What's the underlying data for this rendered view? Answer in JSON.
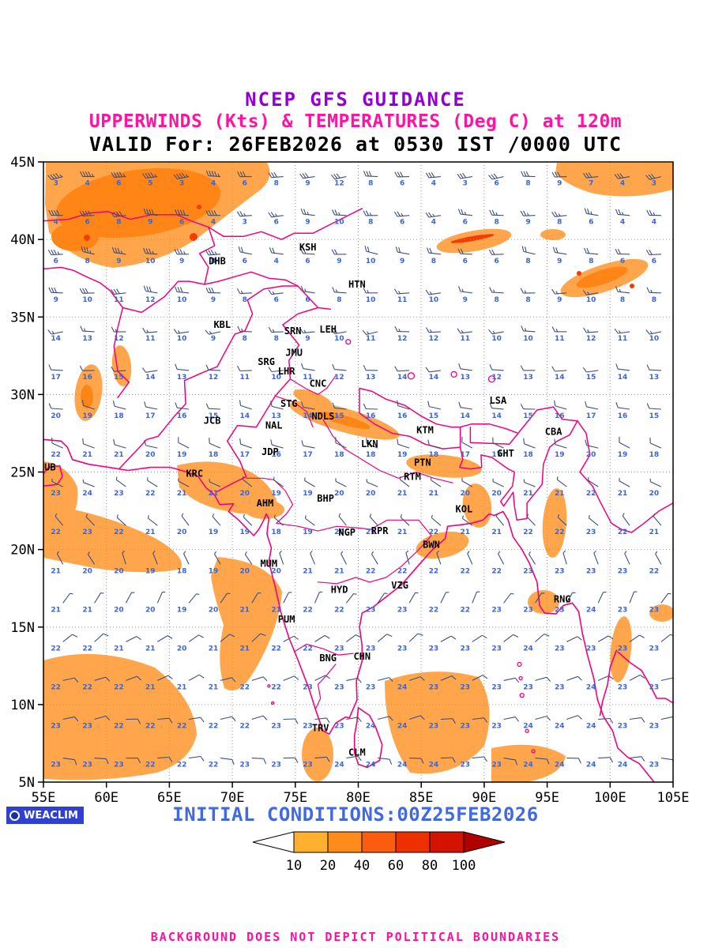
{
  "header": {
    "line1": "NCEP GFS GUIDANCE",
    "line2": "UPPERWINDS (Kts) & TEMPERATURES (Deg C) at 120m",
    "line3": "VALID For: 26FEB2026 at 0530 IST /0000 UTC"
  },
  "footer": {
    "logo_text": "WEACLIM",
    "initial_conditions": "INITIAL CONDITIONS:00Z25FEB2026",
    "disclaimer": "BACKGROUND DOES NOT DEPICT POLITICAL BOUNDARIES"
  },
  "colors": {
    "boundary": "#f2007e",
    "shade_light": "#ffa64d",
    "shade_mid": "#ff8517",
    "shade_high": "#f43b00",
    "barb": "#3d4f7c",
    "temp_text": "#3a64d8",
    "grid": "#9a9a9a",
    "frame": "#000000",
    "title1": "#9400d3",
    "title2": "#ff14a0",
    "initial": "#4169e1",
    "disclaimer": "#ff0f9f",
    "logo_bg": "#2f41d0"
  },
  "axes": {
    "lat": [
      {
        "label": "45N",
        "value": 45
      },
      {
        "label": "40N",
        "value": 40
      },
      {
        "label": "35N",
        "value": 35
      },
      {
        "label": "30N",
        "value": 30
      },
      {
        "label": "25N",
        "value": 25
      },
      {
        "label": "20N",
        "value": 20
      },
      {
        "label": "15N",
        "value": 15
      },
      {
        "label": "10N",
        "value": 10
      },
      {
        "label": "5N",
        "value": 5
      }
    ],
    "lon": [
      {
        "label": "55E",
        "value": 55
      },
      {
        "label": "60E",
        "value": 60
      },
      {
        "label": "65E",
        "value": 65
      },
      {
        "label": "70E",
        "value": 70
      },
      {
        "label": "75E",
        "value": 75
      },
      {
        "label": "80E",
        "value": 80
      },
      {
        "label": "85E",
        "value": 85
      },
      {
        "label": "90E",
        "value": 90
      },
      {
        "label": "95E",
        "value": 95
      },
      {
        "label": "100E",
        "value": 100
      },
      {
        "label": "105E",
        "value": 105
      }
    ]
  },
  "colorbar": {
    "labels": [
      "10",
      "20",
      "40",
      "60",
      "80",
      "100"
    ],
    "colors": [
      "#ffb02e",
      "#ff8c1a",
      "#fb5c10",
      "#ee2f00",
      "#d41200"
    ],
    "arrow_color": "#b00000"
  },
  "stations": [
    {
      "id": "DHB",
      "lon": 68.8,
      "lat": 38.6
    },
    {
      "id": "KSH",
      "lon": 76.0,
      "lat": 39.5
    },
    {
      "id": "HTN",
      "lon": 79.9,
      "lat": 37.1
    },
    {
      "id": "KBL",
      "lon": 69.2,
      "lat": 34.5
    },
    {
      "id": "SRN",
      "lon": 74.8,
      "lat": 34.1
    },
    {
      "id": "LEH",
      "lon": 77.6,
      "lat": 34.2
    },
    {
      "id": "JMU",
      "lon": 74.9,
      "lat": 32.7
    },
    {
      "id": "SRG",
      "lon": 72.7,
      "lat": 32.1
    },
    {
      "id": "LHR",
      "lon": 74.3,
      "lat": 31.5
    },
    {
      "id": "CNC",
      "lon": 76.8,
      "lat": 30.7
    },
    {
      "id": "STG",
      "lon": 74.5,
      "lat": 29.4
    },
    {
      "id": "NDLS",
      "lon": 77.2,
      "lat": 28.6
    },
    {
      "id": "JCB",
      "lon": 68.4,
      "lat": 28.3
    },
    {
      "id": "NAL",
      "lon": 73.3,
      "lat": 28.0
    },
    {
      "id": "LSA",
      "lon": 91.1,
      "lat": 29.6
    },
    {
      "id": "KTM",
      "lon": 85.3,
      "lat": 27.7
    },
    {
      "id": "CBA",
      "lon": 95.5,
      "lat": 27.6
    },
    {
      "id": "GHT",
      "lon": 91.7,
      "lat": 26.2
    },
    {
      "id": "PTN",
      "lon": 85.1,
      "lat": 25.6
    },
    {
      "id": "JDP",
      "lon": 73.0,
      "lat": 26.3
    },
    {
      "id": "LKN",
      "lon": 80.9,
      "lat": 26.8
    },
    {
      "id": "DUB",
      "lon": 55.3,
      "lat": 25.3
    },
    {
      "id": "KRC",
      "lon": 67.0,
      "lat": 24.9
    },
    {
      "id": "RTM",
      "lon": 84.3,
      "lat": 24.7
    },
    {
      "id": "AHM",
      "lon": 72.6,
      "lat": 23.0
    },
    {
      "id": "BHP",
      "lon": 77.4,
      "lat": 23.3
    },
    {
      "id": "KOL",
      "lon": 88.4,
      "lat": 22.6
    },
    {
      "id": "NGP",
      "lon": 79.1,
      "lat": 21.1
    },
    {
      "id": "RPR",
      "lon": 81.7,
      "lat": 21.2
    },
    {
      "id": "BWN",
      "lon": 85.8,
      "lat": 20.3
    },
    {
      "id": "MUM",
      "lon": 72.9,
      "lat": 19.1
    },
    {
      "id": "HYD",
      "lon": 78.5,
      "lat": 17.4
    },
    {
      "id": "VZG",
      "lon": 83.3,
      "lat": 17.7
    },
    {
      "id": "RNG",
      "lon": 96.2,
      "lat": 16.8
    },
    {
      "id": "PUM",
      "lon": 74.3,
      "lat": 15.5
    },
    {
      "id": "CHN",
      "lon": 80.3,
      "lat": 13.1
    },
    {
      "id": "BNG",
      "lon": 77.6,
      "lat": 13.0
    },
    {
      "id": "TRV",
      "lon": 77.0,
      "lat": 8.5
    },
    {
      "id": "CLM",
      "lon": 79.9,
      "lat": 6.9
    }
  ],
  "chart_data": {
    "type": "heatmap",
    "subtype": "weather-map-wind-barbs",
    "title": "NCEP GFS GUIDANCE — UPPERWINDS (Kts) & TEMPERATURES (Deg C) at 120m",
    "valid": "26FEB2026 at 0530 IST /0000 UTC",
    "initial": "00Z25FEB2026",
    "lon_range": [
      55,
      105
    ],
    "lat_range": [
      5,
      45
    ],
    "shading_variable": "wind speed (Kts)",
    "shading_levels": [
      10,
      20,
      40,
      60,
      80,
      100
    ],
    "temperature_units": "Deg C",
    "grid": {
      "lon_start": 56.3,
      "lon_step": 2.5,
      "lat_start": 44.0,
      "lat_step": -2.5,
      "cols": 20,
      "rows": 16
    },
    "temps": [
      [
        3,
        4,
        6,
        5,
        3,
        4,
        6,
        8,
        9,
        12,
        8,
        6,
        4,
        3,
        6,
        8,
        9,
        7,
        4,
        3
      ],
      [
        4,
        6,
        8,
        9,
        6,
        4,
        3,
        6,
        9,
        10,
        8,
        6,
        4,
        6,
        8,
        9,
        8,
        6,
        4,
        4
      ],
      [
        6,
        8,
        9,
        10,
        9,
        8,
        6,
        4,
        6,
        9,
        10,
        9,
        8,
        6,
        6,
        8,
        9,
        8,
        6,
        6
      ],
      [
        9,
        10,
        11,
        12,
        10,
        9,
        8,
        6,
        6,
        8,
        10,
        11,
        10,
        9,
        8,
        8,
        9,
        10,
        8,
        8
      ],
      [
        14,
        13,
        12,
        11,
        10,
        9,
        8,
        8,
        9,
        10,
        11,
        12,
        12,
        11,
        10,
        10,
        11,
        12,
        11,
        10
      ],
      [
        17,
        16,
        15,
        14,
        13,
        12,
        11,
        10,
        11,
        12,
        13,
        14,
        14,
        13,
        12,
        13,
        14,
        15,
        14,
        13
      ],
      [
        20,
        19,
        18,
        17,
        16,
        15,
        14,
        13,
        14,
        15,
        16,
        16,
        15,
        14,
        14,
        15,
        16,
        17,
        16,
        15
      ],
      [
        22,
        21,
        21,
        20,
        19,
        18,
        17,
        16,
        17,
        18,
        18,
        19,
        18,
        17,
        17,
        18,
        19,
        20,
        19,
        18
      ],
      [
        23,
        24,
        23,
        22,
        21,
        21,
        20,
        19,
        19,
        20,
        20,
        21,
        21,
        20,
        20,
        21,
        21,
        22,
        21,
        20
      ],
      [
        22,
        23,
        22,
        21,
        20,
        19,
        19,
        18,
        19,
        20,
        21,
        21,
        22,
        21,
        21,
        22,
        22,
        23,
        22,
        21
      ],
      [
        21,
        20,
        20,
        19,
        18,
        19,
        20,
        20,
        21,
        21,
        22,
        22,
        22,
        22,
        22,
        23,
        23,
        23,
        23,
        22
      ],
      [
        21,
        21,
        20,
        20,
        19,
        20,
        21,
        21,
        22,
        22,
        23,
        23,
        22,
        22,
        23,
        23,
        23,
        24,
        23,
        23
      ],
      [
        22,
        22,
        21,
        21,
        20,
        21,
        21,
        22,
        22,
        23,
        23,
        23,
        23,
        23,
        23,
        24,
        23,
        23,
        23,
        23
      ],
      [
        22,
        22,
        22,
        21,
        21,
        21,
        22,
        22,
        23,
        23,
        23,
        24,
        23,
        23,
        23,
        23,
        23,
        24,
        23,
        23
      ],
      [
        23,
        23,
        22,
        22,
        22,
        22,
        22,
        23,
        23,
        23,
        24,
        24,
        23,
        23,
        23,
        24,
        24,
        24,
        23,
        23
      ],
      [
        23,
        23,
        23,
        22,
        22,
        22,
        23,
        23,
        23,
        24,
        24,
        24,
        24,
        23,
        23,
        24,
        24,
        24,
        24,
        23
      ]
    ],
    "wind_rows": [
      {
        "dir": 265,
        "spd": 30
      },
      {
        "dir": 270,
        "spd": 25
      },
      {
        "dir": 275,
        "spd": 20
      },
      {
        "dir": 270,
        "spd": 15
      },
      {
        "dir": 265,
        "spd": 15
      },
      {
        "dir": 270,
        "spd": 10
      },
      {
        "dir": 280,
        "spd": 10
      },
      {
        "dir": 290,
        "spd": 10
      },
      {
        "dir": 300,
        "spd": 5
      },
      {
        "dir": 315,
        "spd": 5
      },
      {
        "dir": 335,
        "spd": 5
      },
      {
        "dir": 30,
        "spd": 5
      },
      {
        "dir": 55,
        "spd": 10
      },
      {
        "dir": 70,
        "spd": 10
      },
      {
        "dir": 80,
        "spd": 10
      },
      {
        "dir": 90,
        "spd": 10
      }
    ]
  }
}
